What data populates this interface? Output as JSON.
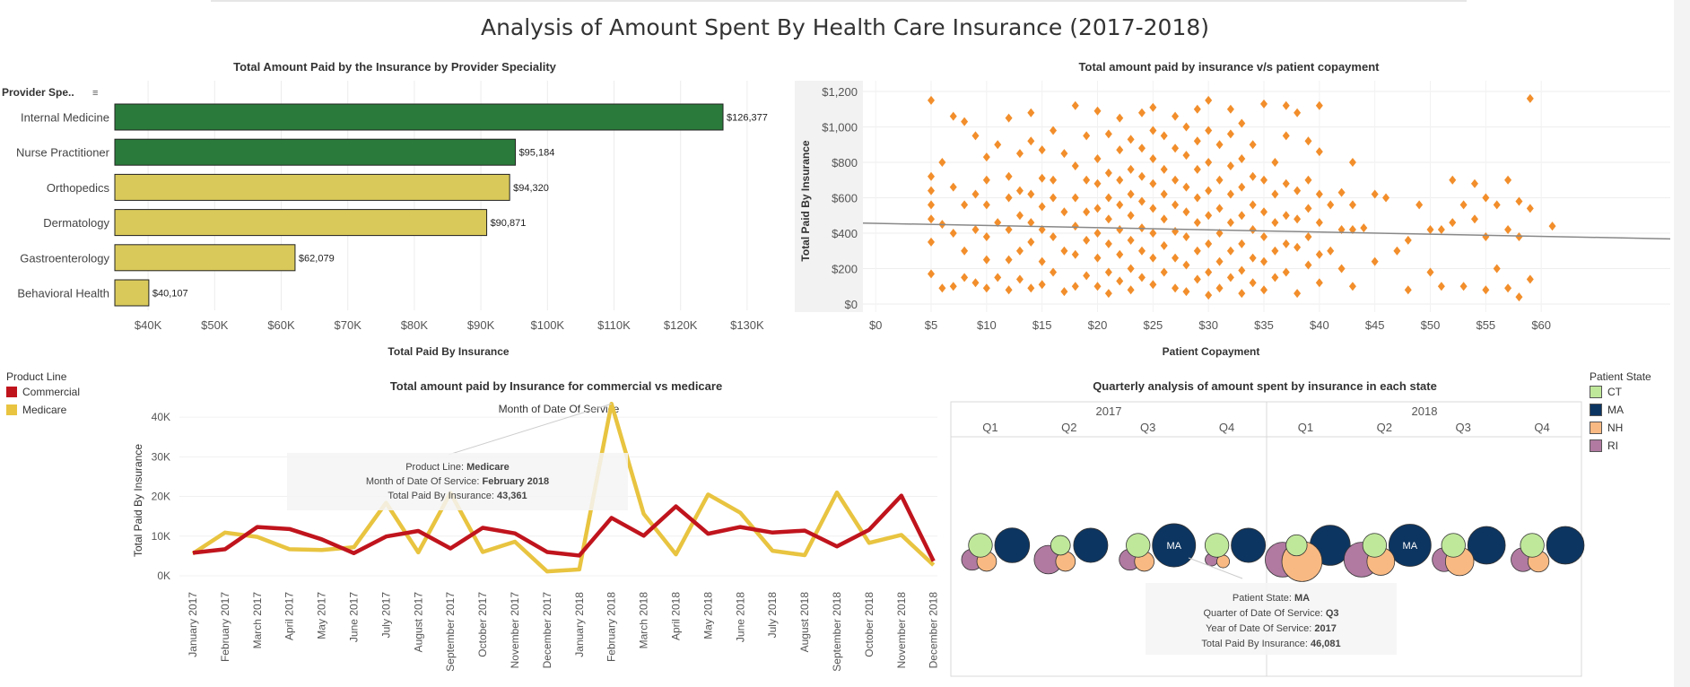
{
  "page": {
    "title": "Analysis of Amount Spent By Health Care Insurance (2017-2018)"
  },
  "colors": {
    "commercial": "#c0141d",
    "medicare": "#e8c440",
    "bar_green": "#2a7a3b",
    "bar_yellow": "#d9c95a",
    "scatter": "#f28e2b",
    "trend": "#888888",
    "ct": "#c0e89a",
    "ma": "#0d3561",
    "nh": "#f9b982",
    "ri": "#b07aa1"
  },
  "chart_data": [
    {
      "type": "bar",
      "title": "Total Amount Paid by the  Insurance by Provider Speciality",
      "header": "Provider Spe..",
      "categories": [
        "Internal Medicine",
        "Nurse Practitioner",
        "Orthopedics",
        "Dermatology",
        "Gastroenterology",
        "Behavioral Health"
      ],
      "values": [
        126377,
        95184,
        94320,
        90871,
        62079,
        40107
      ],
      "value_labels": [
        "$126,377",
        "$95,184",
        "$94,320",
        "$90,871",
        "$62,079",
        "$40,107"
      ],
      "bar_colors": [
        "green",
        "green",
        "yellow",
        "yellow",
        "yellow",
        "yellow"
      ],
      "xlabel": "Total Paid By Insurance",
      "xlim": [
        35000,
        135000
      ],
      "xticks": [
        40000,
        50000,
        60000,
        70000,
        80000,
        90000,
        100000,
        110000,
        120000,
        130000
      ],
      "xtick_labels": [
        "$40K",
        "$50K",
        "$60K",
        "$70K",
        "$80K",
        "$90K",
        "$100K",
        "$110K",
        "$120K",
        "$130K"
      ],
      "grid": true
    },
    {
      "type": "scatter",
      "title": "Total amount paid by insurance v/s patient copayment",
      "xlabel": "Patient Copayment",
      "ylabel": "Total Paid By Insurance",
      "xlim": [
        0,
        65
      ],
      "ylim": [
        0,
        1200
      ],
      "xticks": [
        0,
        5,
        10,
        15,
        20,
        25,
        30,
        35,
        40,
        45,
        50,
        55,
        60
      ],
      "xtick_labels": [
        "$0",
        "$5",
        "$10",
        "$15",
        "$20",
        "$25",
        "$30",
        "$35",
        "$40",
        "$45",
        "$50",
        "$55",
        "$60"
      ],
      "yticks": [
        0,
        200,
        400,
        600,
        800,
        1000,
        1200
      ],
      "ytick_labels": [
        "$0",
        "$200",
        "$400",
        "$600",
        "$800",
        "$1,000",
        "$1,200"
      ],
      "trend": [
        [
          -0.5,
          457
        ],
        [
          65,
          368
        ]
      ],
      "points": [
        [
          5,
          1150
        ],
        [
          5,
          720
        ],
        [
          5,
          640
        ],
        [
          5,
          560
        ],
        [
          5,
          480
        ],
        [
          5,
          350
        ],
        [
          5,
          170
        ],
        [
          6,
          800
        ],
        [
          6,
          450
        ],
        [
          6,
          90
        ],
        [
          7,
          1060
        ],
        [
          7,
          660
        ],
        [
          7,
          400
        ],
        [
          7,
          100
        ],
        [
          8,
          1030
        ],
        [
          8,
          560
        ],
        [
          8,
          300
        ],
        [
          8,
          150
        ],
        [
          9,
          950
        ],
        [
          9,
          620
        ],
        [
          9,
          420
        ],
        [
          9,
          120
        ],
        [
          10,
          830
        ],
        [
          10,
          700
        ],
        [
          10,
          560
        ],
        [
          10,
          380
        ],
        [
          10,
          250
        ],
        [
          10,
          90
        ],
        [
          11,
          900
        ],
        [
          11,
          460
        ],
        [
          11,
          150
        ],
        [
          12,
          1050
        ],
        [
          12,
          720
        ],
        [
          12,
          600
        ],
        [
          12,
          420
        ],
        [
          12,
          250
        ],
        [
          12,
          80
        ],
        [
          13,
          850
        ],
        [
          13,
          640
        ],
        [
          13,
          500
        ],
        [
          13,
          300
        ],
        [
          13,
          140
        ],
        [
          14,
          1080
        ],
        [
          14,
          920
        ],
        [
          14,
          620
        ],
        [
          14,
          460
        ],
        [
          14,
          350
        ],
        [
          14,
          90
        ],
        [
          15,
          870
        ],
        [
          15,
          710
        ],
        [
          15,
          550
        ],
        [
          15,
          420
        ],
        [
          15,
          240
        ],
        [
          15,
          110
        ],
        [
          16,
          980
        ],
        [
          16,
          700
        ],
        [
          16,
          600
        ],
        [
          16,
          380
        ],
        [
          16,
          180
        ],
        [
          17,
          850
        ],
        [
          17,
          520
        ],
        [
          17,
          300
        ],
        [
          17,
          70
        ],
        [
          18,
          1120
        ],
        [
          18,
          780
        ],
        [
          18,
          600
        ],
        [
          18,
          440
        ],
        [
          18,
          280
        ],
        [
          18,
          100
        ],
        [
          19,
          950
        ],
        [
          19,
          700
        ],
        [
          19,
          520
        ],
        [
          19,
          360
        ],
        [
          19,
          160
        ],
        [
          20,
          1090
        ],
        [
          20,
          820
        ],
        [
          20,
          680
        ],
        [
          20,
          540
        ],
        [
          20,
          400
        ],
        [
          20,
          260
        ],
        [
          20,
          100
        ],
        [
          21,
          960
        ],
        [
          21,
          740
        ],
        [
          21,
          600
        ],
        [
          21,
          480
        ],
        [
          21,
          340
        ],
        [
          21,
          180
        ],
        [
          21,
          60
        ],
        [
          22,
          1050
        ],
        [
          22,
          870
        ],
        [
          22,
          700
        ],
        [
          22,
          560
        ],
        [
          22,
          420
        ],
        [
          22,
          280
        ],
        [
          22,
          130
        ],
        [
          23,
          930
        ],
        [
          23,
          760
        ],
        [
          23,
          620
        ],
        [
          23,
          500
        ],
        [
          23,
          360
        ],
        [
          23,
          200
        ],
        [
          23,
          80
        ],
        [
          24,
          1080
        ],
        [
          24,
          880
        ],
        [
          24,
          720
        ],
        [
          24,
          580
        ],
        [
          24,
          430
        ],
        [
          24,
          300
        ],
        [
          24,
          150
        ],
        [
          25,
          1110
        ],
        [
          25,
          980
        ],
        [
          25,
          820
        ],
        [
          25,
          680
        ],
        [
          25,
          540
        ],
        [
          25,
          400
        ],
        [
          25,
          260
        ],
        [
          25,
          110
        ],
        [
          26,
          950
        ],
        [
          26,
          760
        ],
        [
          26,
          620
        ],
        [
          26,
          480
        ],
        [
          26,
          330
        ],
        [
          26,
          180
        ],
        [
          27,
          1060
        ],
        [
          27,
          880
        ],
        [
          27,
          700
        ],
        [
          27,
          560
        ],
        [
          27,
          410
        ],
        [
          27,
          260
        ],
        [
          27,
          90
        ],
        [
          28,
          1000
        ],
        [
          28,
          840
        ],
        [
          28,
          660
        ],
        [
          28,
          520
        ],
        [
          28,
          380
        ],
        [
          28,
          220
        ],
        [
          28,
          70
        ],
        [
          29,
          1100
        ],
        [
          29,
          920
        ],
        [
          29,
          760
        ],
        [
          29,
          600
        ],
        [
          29,
          460
        ],
        [
          29,
          300
        ],
        [
          29,
          140
        ],
        [
          30,
          1150
        ],
        [
          30,
          980
        ],
        [
          30,
          800
        ],
        [
          30,
          640
        ],
        [
          30,
          500
        ],
        [
          30,
          340
        ],
        [
          30,
          180
        ],
        [
          30,
          50
        ],
        [
          31,
          900
        ],
        [
          31,
          700
        ],
        [
          31,
          540
        ],
        [
          31,
          400
        ],
        [
          31,
          240
        ],
        [
          31,
          90
        ],
        [
          32,
          1100
        ],
        [
          32,
          960
        ],
        [
          32,
          780
        ],
        [
          32,
          620
        ],
        [
          32,
          460
        ],
        [
          32,
          300
        ],
        [
          32,
          150
        ],
        [
          33,
          1020
        ],
        [
          33,
          820
        ],
        [
          33,
          660
        ],
        [
          33,
          500
        ],
        [
          33,
          340
        ],
        [
          33,
          190
        ],
        [
          33,
          60
        ],
        [
          34,
          900
        ],
        [
          34,
          720
        ],
        [
          34,
          560
        ],
        [
          34,
          420
        ],
        [
          34,
          260
        ],
        [
          34,
          120
        ],
        [
          35,
          1130
        ],
        [
          35,
          700
        ],
        [
          35,
          520
        ],
        [
          35,
          380
        ],
        [
          35,
          240
        ],
        [
          35,
          80
        ],
        [
          36,
          800
        ],
        [
          36,
          620
        ],
        [
          36,
          460
        ],
        [
          36,
          300
        ],
        [
          36,
          150
        ],
        [
          37,
          1120
        ],
        [
          37,
          950
        ],
        [
          37,
          680
        ],
        [
          37,
          500
        ],
        [
          37,
          340
        ],
        [
          37,
          180
        ],
        [
          38,
          1080
        ],
        [
          38,
          640
        ],
        [
          38,
          480
        ],
        [
          38,
          320
        ],
        [
          38,
          60
        ],
        [
          39,
          920
        ],
        [
          39,
          700
        ],
        [
          39,
          540
        ],
        [
          39,
          380
        ],
        [
          39,
          220
        ],
        [
          40,
          1120
        ],
        [
          40,
          860
        ],
        [
          40,
          620
        ],
        [
          40,
          460
        ],
        [
          40,
          280
        ],
        [
          40,
          120
        ],
        [
          41,
          560
        ],
        [
          41,
          300
        ],
        [
          42,
          630
        ],
        [
          42,
          420
        ],
        [
          42,
          200
        ],
        [
          43,
          800
        ],
        [
          43,
          560
        ],
        [
          43,
          420
        ],
        [
          43,
          100
        ],
        [
          44,
          430
        ],
        [
          45,
          620
        ],
        [
          45,
          240
        ],
        [
          46,
          600
        ],
        [
          47,
          300
        ],
        [
          48,
          360
        ],
        [
          48,
          80
        ],
        [
          49,
          560
        ],
        [
          50,
          420
        ],
        [
          50,
          180
        ],
        [
          51,
          420
        ],
        [
          51,
          100
        ],
        [
          52,
          700
        ],
        [
          52,
          460
        ],
        [
          53,
          560
        ],
        [
          53,
          100
        ],
        [
          54,
          680
        ],
        [
          54,
          480
        ],
        [
          55,
          600
        ],
        [
          55,
          380
        ],
        [
          55,
          80
        ],
        [
          56,
          560
        ],
        [
          56,
          200
        ],
        [
          57,
          700
        ],
        [
          57,
          420
        ],
        [
          57,
          90
        ],
        [
          58,
          580
        ],
        [
          58,
          380
        ],
        [
          58,
          40
        ],
        [
          59,
          540
        ],
        [
          59,
          140
        ],
        [
          59,
          1160
        ],
        [
          61,
          440
        ]
      ]
    },
    {
      "type": "line",
      "title": "Total amount paid by Insurance  for commercial vs medicare",
      "xlabel": "Month of Date Of Service",
      "ylabel": "Total Paid By Insurance",
      "ylim": [
        0,
        45000
      ],
      "yticks": [
        0,
        10000,
        20000,
        30000,
        40000
      ],
      "ytick_labels": [
        "0K",
        "10K",
        "20K",
        "30K",
        "40K"
      ],
      "categories": [
        "January 2017",
        "February 2017",
        "March 2017",
        "April 2017",
        "May 2017",
        "June 2017",
        "July 2017",
        "August 2017",
        "September 2017",
        "October 2017",
        "November 2017",
        "December 2017",
        "January 2018",
        "February 2018",
        "March 2018",
        "April 2018",
        "May 2018",
        "June 2018",
        "July 2018",
        "August 2018",
        "September 2018",
        "October 2018",
        "November 2018",
        "December 2018"
      ],
      "series": [
        {
          "name": "Commercial",
          "values": [
            5800,
            6700,
            12300,
            11800,
            9200,
            5700,
            9900,
            11300,
            6900,
            12100,
            10700,
            6000,
            5100,
            14600,
            10100,
            17500,
            10600,
            12300,
            10900,
            11400,
            7400,
            11600,
            20200,
            3700
          ]
        },
        {
          "name": "Medicare",
          "values": [
            5600,
            10900,
            9800,
            6700,
            6500,
            7200,
            18400,
            5900,
            20900,
            6000,
            8600,
            1100,
            1600,
            43361,
            15600,
            5400,
            20500,
            15900,
            6300,
            5200,
            21000,
            8300,
            10300,
            2700
          ]
        }
      ],
      "legend_title": "Product Line",
      "tooltip": {
        "line1_label": "Product Line: ",
        "line1_value": "Medicare",
        "line2_label": "Month of Date Of Service: ",
        "line2_value": "February 2018",
        "line3_label": "Total Paid By Insurance: ",
        "line3_value": "43,361"
      }
    },
    {
      "type": "bubble",
      "title": "Quarterly analysis of amount spent by insurance in each state",
      "years": [
        "2017",
        "2018"
      ],
      "quarters": [
        "Q1",
        "Q2",
        "Q3",
        "Q4",
        "Q1",
        "Q2",
        "Q3",
        "Q4"
      ],
      "legend_title": "Patient State",
      "states": [
        "CT",
        "MA",
        "NH",
        "RI"
      ],
      "values": [
        {
          "CT": 14000,
          "MA": 30000,
          "NH": 9500,
          "RI": 11000
        },
        {
          "CT": 9500,
          "MA": 29000,
          "NH": 9500,
          "RI": 20000
        },
        {
          "CT": 14000,
          "MA": 46081,
          "NH": 9500,
          "RI": 11000
        },
        {
          "CT": 14000,
          "MA": 29000,
          "NH": 4000,
          "RI": 4000
        },
        {
          "CT": 11000,
          "MA": 40000,
          "NH": 40000,
          "RI": 30000
        },
        {
          "CT": 14000,
          "MA": 44000,
          "NH": 19000,
          "RI": 30000
        },
        {
          "CT": 14000,
          "MA": 35000,
          "NH": 20000,
          "RI": 14000
        },
        {
          "CT": 14000,
          "MA": 35000,
          "NH": 11000,
          "RI": 14000
        }
      ],
      "labels": [
        "",
        "",
        "MA",
        "",
        "",
        "MA",
        "",
        ""
      ],
      "tooltip": {
        "line1_label": "Patient State: ",
        "line1_value": "MA",
        "line2_label": "Quarter of Date Of Service: ",
        "line2_value": "Q3",
        "line3_label": "Year of Date Of Service: ",
        "line3_value": "2017",
        "line4_label": "Total Paid By Insurance: ",
        "line4_value": "46,081"
      }
    }
  ]
}
